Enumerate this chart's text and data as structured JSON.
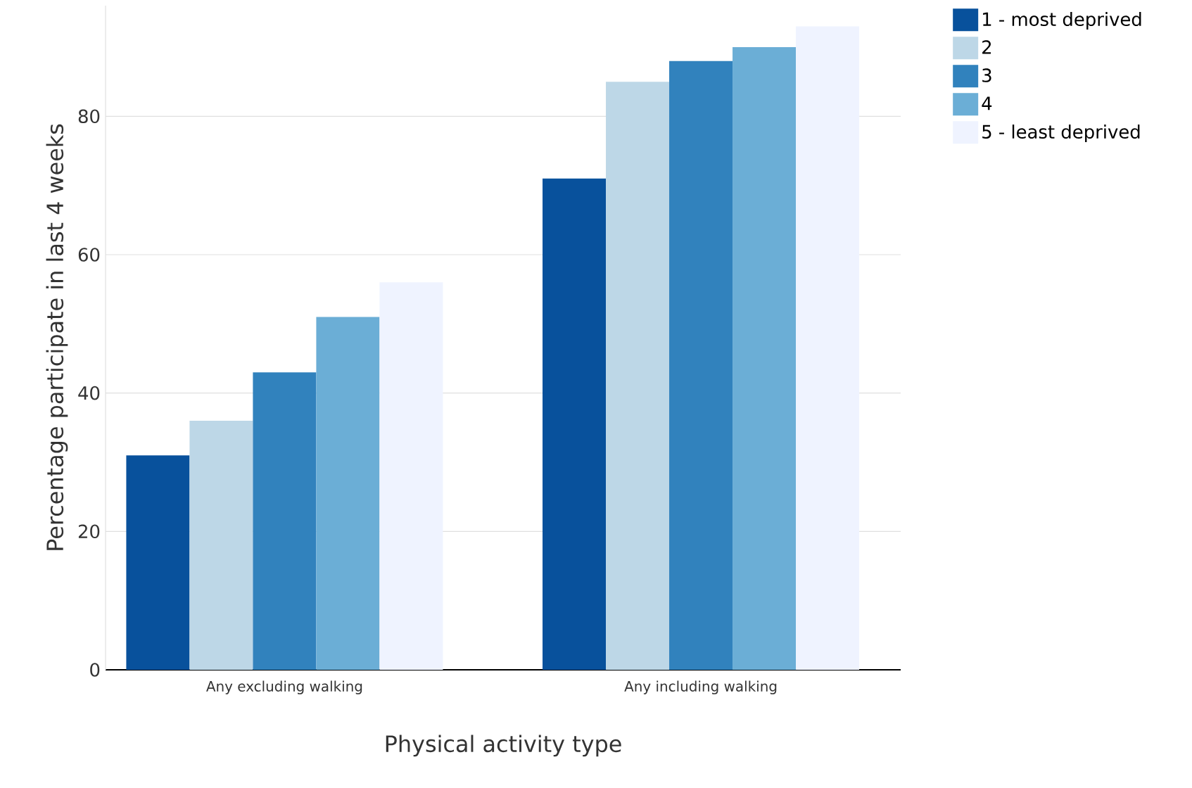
{
  "chart_data": {
    "type": "bar",
    "xlabel": "Physical activity type",
    "ylabel": "Percentage participate in last 4 weeks",
    "categories": [
      "Any excluding walking",
      "Any including walking"
    ],
    "series": [
      {
        "name": "1 - most deprived",
        "color": "#08519c",
        "values": [
          31,
          71
        ]
      },
      {
        "name": "2",
        "color": "#bdd7e7",
        "values": [
          36,
          85
        ]
      },
      {
        "name": "3",
        "color": "#3182bd",
        "values": [
          43,
          88
        ]
      },
      {
        "name": "4",
        "color": "#6baed6",
        "values": [
          51,
          90
        ]
      },
      {
        "name": "5 - least deprived",
        "color": "#eff3ff",
        "values": [
          56,
          93
        ]
      }
    ],
    "ylim": [
      0,
      96
    ],
    "yticks": [
      0,
      20,
      40,
      60,
      80
    ],
    "grid": "y",
    "legend": "top right"
  }
}
